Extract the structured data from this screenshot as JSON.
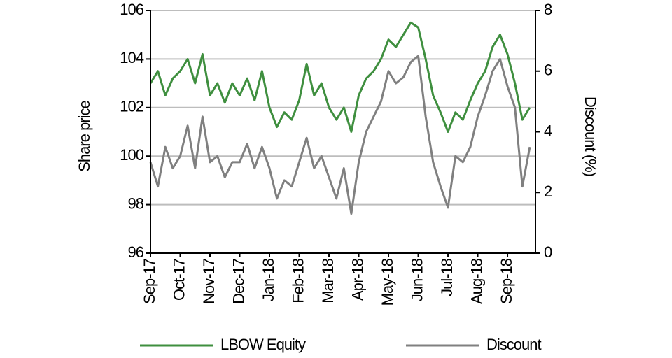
{
  "chart_data": {
    "type": "line",
    "x": [
      0,
      0.25,
      0.5,
      0.75,
      1,
      1.25,
      1.5,
      1.75,
      2,
      2.25,
      2.5,
      2.75,
      3,
      3.25,
      3.5,
      3.75,
      4,
      4.25,
      4.5,
      4.75,
      5,
      5.25,
      5.5,
      5.75,
      6,
      6.25,
      6.5,
      6.75,
      7,
      7.25,
      7.5,
      7.75,
      8,
      8.25,
      8.5,
      8.75,
      9,
      9.25,
      9.5,
      9.75,
      10,
      10.25,
      10.5,
      10.75,
      11,
      11.25,
      11.5,
      11.75,
      12,
      12.25,
      12.5,
      12.75
    ],
    "series": [
      {
        "name": "LBOW Equity",
        "color": "#3f8f3f",
        "axis": "y",
        "values": [
          103,
          103.5,
          102.5,
          103.2,
          103.5,
          104,
          103,
          104.2,
          102.5,
          103,
          102.2,
          103,
          102.5,
          103.2,
          102.3,
          103.5,
          102,
          101.2,
          101.8,
          101.5,
          102.3,
          103.8,
          102.5,
          103,
          102,
          101.5,
          102,
          101,
          102.5,
          103.2,
          103.5,
          104,
          104.8,
          104.5,
          105,
          105.5,
          105.3,
          104,
          102.5,
          101.8,
          101,
          101.8,
          101.5,
          102.3,
          103,
          103.5,
          104.5,
          105,
          104.2,
          103,
          101.5,
          102
        ]
      },
      {
        "name": "Discount",
        "color": "#808080",
        "axis": "y2",
        "values": [
          3,
          2.2,
          3.5,
          2.8,
          3.2,
          4.2,
          2.8,
          4.5,
          3,
          3.2,
          2.5,
          3,
          3,
          3.6,
          2.8,
          3.5,
          2.8,
          1.8,
          2.4,
          2.2,
          3,
          3.8,
          2.8,
          3.2,
          2.5,
          1.8,
          2.8,
          1.3,
          3,
          4,
          4.5,
          5,
          6,
          5.6,
          5.8,
          6.3,
          6.5,
          4.5,
          3,
          2.2,
          1.5,
          3.2,
          3,
          3.5,
          4.5,
          5.2,
          6,
          6.4,
          5.5,
          4.8,
          2.2,
          3.5
        ]
      }
    ],
    "xlim": [
      0,
      12.94
    ],
    "xticks": [
      {
        "value": 0,
        "label": "Sep-17"
      },
      {
        "value": 1,
        "label": "Oct-17"
      },
      {
        "value": 2,
        "label": "Nov-17"
      },
      {
        "value": 3,
        "label": "Dec-17"
      },
      {
        "value": 4,
        "label": "Jan-18"
      },
      {
        "value": 5,
        "label": "Feb-18"
      },
      {
        "value": 6,
        "label": "Mar-18"
      },
      {
        "value": 7,
        "label": "Apr-18"
      },
      {
        "value": 8,
        "label": "May-18"
      },
      {
        "value": 9,
        "label": "Jun-18"
      },
      {
        "value": 10,
        "label": "Jul-18"
      },
      {
        "value": 11,
        "label": "Aug-18"
      },
      {
        "value": 12,
        "label": "Sep-18"
      }
    ],
    "ylim": [
      96,
      106
    ],
    "yticks": [
      96,
      98,
      100,
      102,
      104,
      106
    ],
    "y2lim": [
      0,
      8
    ],
    "y2ticks": [
      0,
      2,
      4,
      6,
      8
    ],
    "ylabel": "Share price",
    "y2label": "Discount (%)",
    "grid": true,
    "legend": "bottom"
  }
}
